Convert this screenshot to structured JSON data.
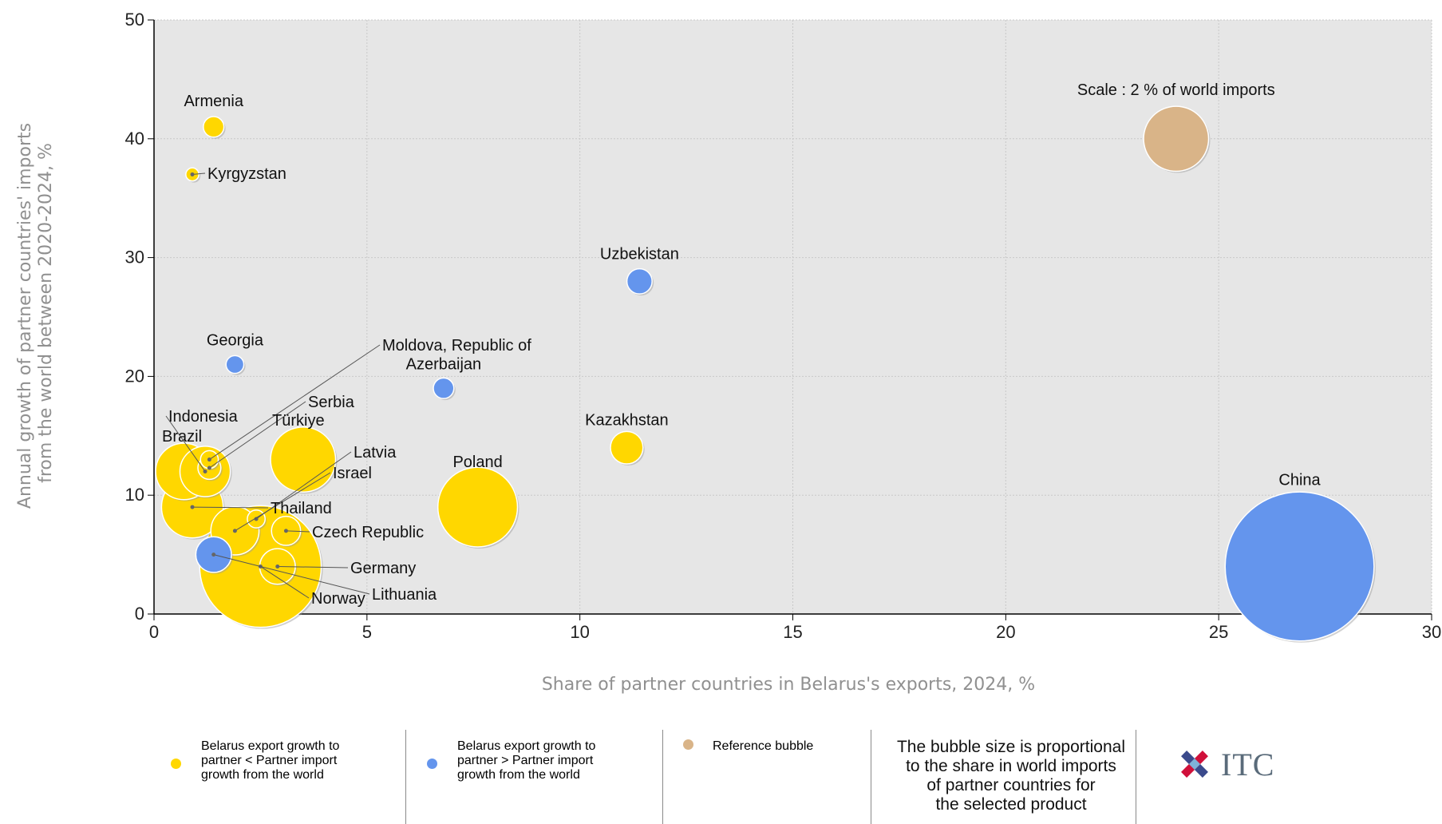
{
  "colors": {
    "yellow": "#ffd700",
    "blue": "#6495ed",
    "reference": "#d9b488",
    "plot_bg": "#e6e6e6",
    "grid": "#c8c8c8"
  },
  "chart_data": {
    "type": "scatter",
    "xlabel": "Share of partner countries in Belarus's exports, 2024, %",
    "ylabel_lines": [
      "Annual growth of partner countries' imports",
      "from the world between 2020-2024, %"
    ],
    "xlim": [
      0,
      30
    ],
    "ylim": [
      0,
      50
    ],
    "xticks": [
      "0",
      "5",
      "10",
      "15",
      "20",
      "25",
      "30"
    ],
    "yticks": [
      "0",
      "10",
      "20",
      "30",
      "40",
      "50"
    ],
    "grid": true,
    "reference_bubble": {
      "label": "Scale : 2 % of world imports",
      "x": 24,
      "y": 40,
      "size": 2
    },
    "points": [
      {
        "name": "Armenia",
        "x": 1.4,
        "y": 41,
        "size": 0.2,
        "group": "yellow"
      },
      {
        "name": "Kyrgyzstan",
        "x": 0.9,
        "y": 37,
        "size": 0.08,
        "group": "yellow"
      },
      {
        "name": "Uzbekistan",
        "x": 11.4,
        "y": 28,
        "size": 0.3,
        "group": "blue"
      },
      {
        "name": "Georgia",
        "x": 1.9,
        "y": 21,
        "size": 0.15,
        "group": "blue"
      },
      {
        "name": "Moldova, Republic of",
        "x": 1.3,
        "y": 13,
        "size": 0.15,
        "group": "yellow"
      },
      {
        "name": "Azerbaijan",
        "x": 6.8,
        "y": 19,
        "size": 0.2,
        "group": "blue"
      },
      {
        "name": "Serbia",
        "x": 1.3,
        "y": 12.3,
        "size": 0.25,
        "group": "yellow"
      },
      {
        "name": "Indonesia",
        "x": 1.2,
        "y": 12,
        "size": 1.2,
        "group": "yellow"
      },
      {
        "name": "Brazil",
        "x": 0.7,
        "y": 12,
        "size": 1.5,
        "group": "yellow"
      },
      {
        "name": "Türkiye",
        "x": 3.5,
        "y": 13,
        "size": 2.0,
        "group": "yellow"
      },
      {
        "name": "Kazakhstan",
        "x": 11.1,
        "y": 14,
        "size": 0.5,
        "group": "yellow"
      },
      {
        "name": "Poland",
        "x": 7.6,
        "y": 9,
        "size": 3.0,
        "group": "yellow"
      },
      {
        "name": "Latvia",
        "x": 2.4,
        "y": 8,
        "size": 0.15,
        "group": "yellow"
      },
      {
        "name": "Israel",
        "x": 1.9,
        "y": 7,
        "size": 1.1,
        "group": "yellow"
      },
      {
        "name": "Thailand",
        "x": 0.9,
        "y": 9,
        "size": 1.8,
        "group": "yellow"
      },
      {
        "name": "Czech Republic",
        "x": 3.1,
        "y": 7,
        "size": 0.4,
        "group": "yellow"
      },
      {
        "name": "Germany",
        "x": 2.9,
        "y": 4,
        "size": 0.6,
        "group": "yellow"
      },
      {
        "name": "Norway",
        "x": 2.5,
        "y": 4,
        "size": 7.0,
        "group": "yellow"
      },
      {
        "name": "Lithuania",
        "x": 1.4,
        "y": 5,
        "size": 0.6,
        "group": "blue"
      },
      {
        "name": "China",
        "x": 26.9,
        "y": 4,
        "size": 10.5,
        "group": "blue"
      }
    ]
  },
  "legend": {
    "yellow_label": [
      "Belarus export growth to",
      "partner < Partner import",
      "growth from the world"
    ],
    "blue_label": [
      "Belarus export growth to",
      "partner > Partner import",
      "growth from the world"
    ],
    "reference_label": "Reference bubble",
    "note": [
      "The bubble size is proportional",
      "to the share in world imports",
      "of partner countries for",
      "the selected product"
    ]
  },
  "logo": {
    "text": "ITC"
  }
}
